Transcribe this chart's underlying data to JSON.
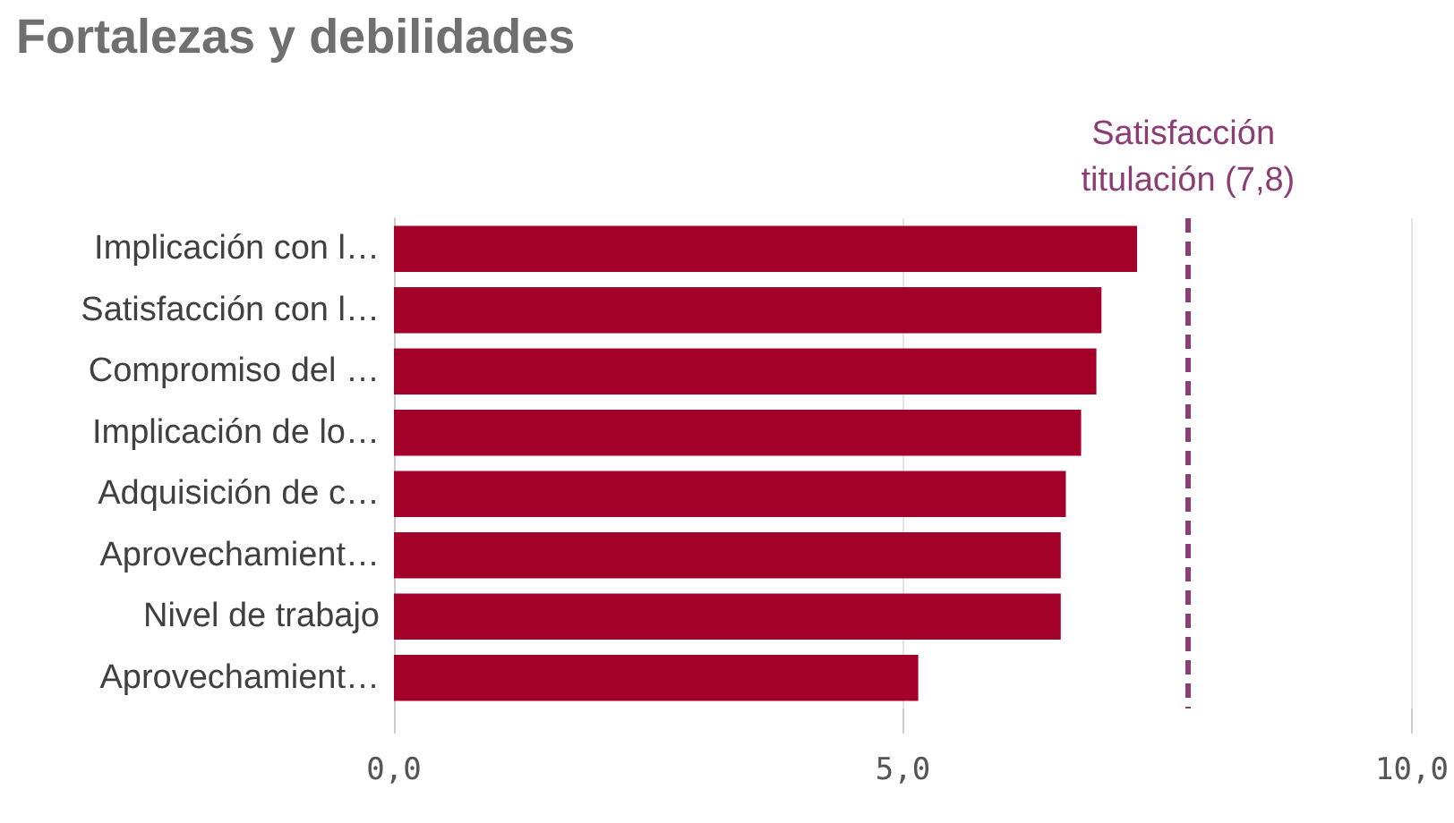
{
  "chart_data": {
    "type": "bar",
    "orientation": "horizontal",
    "title": "Fortalezas y debilidades",
    "categories": [
      "Implicación con l…",
      "Satisfacción con l…",
      "Compromiso del …",
      "Implicación de lo…",
      "Adquisición de c…",
      "Aprovechamient…",
      "Nivel de trabajo",
      "Aprovechamient…"
    ],
    "values": [
      7.3,
      6.95,
      6.9,
      6.75,
      6.6,
      6.55,
      6.55,
      5.15
    ],
    "color": "#a3002a",
    "xlim": [
      0,
      10
    ],
    "xticks": [
      {
        "value": 0,
        "label": "0,0"
      },
      {
        "value": 5,
        "label": "5,0"
      },
      {
        "value": 10,
        "label": "10,0"
      }
    ],
    "grid": "x",
    "ref_lines": [
      {
        "axis": "x",
        "value": 7.8,
        "label": "Satisfacción titulación (7,8)",
        "color": "#8b3d74",
        "line_style": "dashed"
      }
    ]
  }
}
